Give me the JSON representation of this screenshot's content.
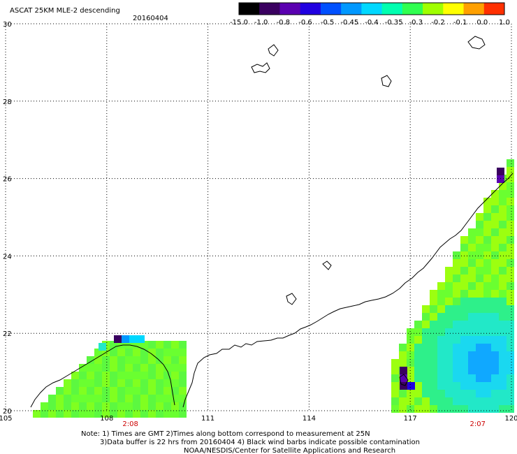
{
  "header": {
    "title": "ASCAT 25KM MLE-2 descending",
    "date": "20160404"
  },
  "colorbar": {
    "labels": [
      "-15.0",
      "-1.0",
      "-0.8",
      "-0.6",
      "-0.5",
      "-0.45",
      "-0.4",
      "-0.35",
      "-0.3",
      "-0.2",
      "-0.1",
      "0.0",
      "1.0"
    ],
    "colors": [
      "#000000",
      "#3a0060",
      "#5a00b0",
      "#2000e0",
      "#0050ff",
      "#0098ff",
      "#00d8ff",
      "#00ffb0",
      "#30ff50",
      "#a0ff00",
      "#ffff00",
      "#ffa000",
      "#ff3000"
    ]
  },
  "map": {
    "lon_ticks": [
      "105",
      "108",
      "111",
      "114",
      "117",
      "120"
    ],
    "lat_ticks": [
      "30",
      "28",
      "26",
      "24",
      "22",
      "20"
    ],
    "time_labels": [
      {
        "text": "2:08",
        "lon": 108.7
      },
      {
        "text": "2:07",
        "lon": 119.0
      }
    ]
  },
  "footer": {
    "line1": "Note: 1) Times are GMT 2)Times along bottom correspond to measurement at 25N",
    "line2": "3)Data buffer is 22 hrs from 20160404 4) Black wind barbs indicate possible contamination",
    "line3": "NOAA/NESDIS/Center for Satellite Applications and Research"
  }
}
